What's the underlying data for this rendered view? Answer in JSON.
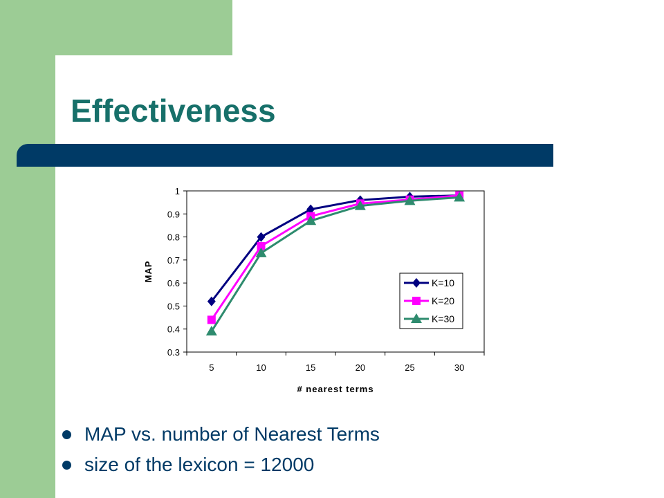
{
  "slide": {
    "title": "Effectiveness",
    "bullets": [
      "MAP vs. number of Nearest Terms",
      "size of the lexicon = 12000"
    ]
  },
  "colors": {
    "green_band": "#9ccc95",
    "title_bar": "#003a66",
    "title_text": "#17706a",
    "bullet_text": "#003a66"
  },
  "chart_data": {
    "type": "line",
    "xlabel": "# nearest terms",
    "ylabel": "MAP",
    "categories": [
      "5",
      "10",
      "15",
      "20",
      "25",
      "30"
    ],
    "ylim": [
      0.3,
      1
    ],
    "yticks": [
      "0.3",
      "0.4",
      "0.5",
      "0.6",
      "0.7",
      "0.8",
      "0.9",
      "1"
    ],
    "grid": false,
    "legend": "right, lower-middle",
    "series": [
      {
        "name": "K=10",
        "color": "#000080",
        "marker": "diamond",
        "values": [
          0.52,
          0.8,
          0.92,
          0.96,
          0.975,
          0.98
        ]
      },
      {
        "name": "K=20",
        "color": "#ff00ff",
        "marker": "square",
        "values": [
          0.44,
          0.76,
          0.89,
          0.945,
          0.962,
          0.98
        ]
      },
      {
        "name": "K=30",
        "color": "#2e8b6e",
        "marker": "triangle",
        "values": [
          0.39,
          0.73,
          0.87,
          0.935,
          0.957,
          0.972
        ]
      }
    ]
  }
}
